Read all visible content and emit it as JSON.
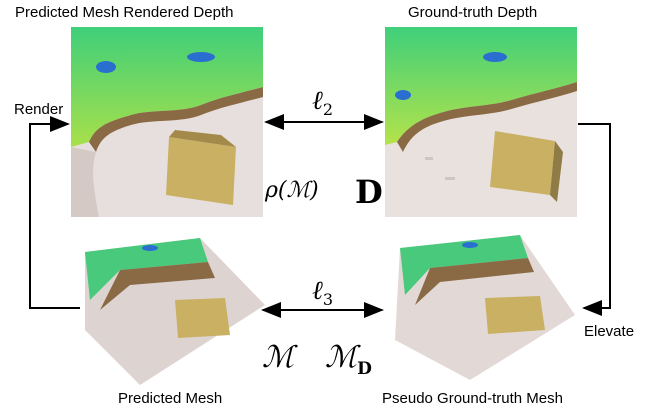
{
  "labels": {
    "predicted_depth": "Predicted Mesh Rendered Depth",
    "gt_depth": "Ground-truth Depth",
    "predicted_mesh": "Predicted Mesh",
    "pseudo_gt_mesh": "Pseudo Ground-truth Mesh",
    "render": "Render",
    "elevate": "Elevate"
  },
  "math": {
    "l2": "ℓ",
    "l2_sub": "2",
    "l3": "ℓ",
    "l3_sub": "3",
    "rho_m": "ρ(ℳ)",
    "D": "D",
    "M": "ℳ",
    "MD_base": "ℳ",
    "MD_sub": "D"
  },
  "colors": {
    "terrain_green": "#4ccf6e",
    "terrain_blue": "#2a6fd0",
    "terrain_brown": "#8a6a45",
    "ground_pink": "#e6dcda",
    "building_gold": "#c9b063"
  }
}
